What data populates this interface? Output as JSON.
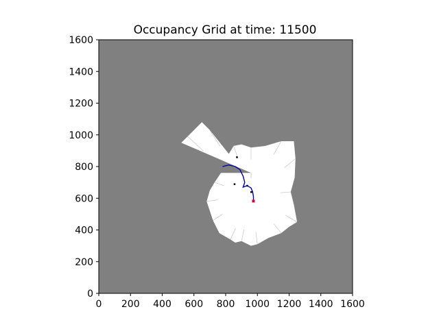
{
  "chart_data": {
    "type": "heatmap",
    "title": "Occupancy Grid at time: 11500",
    "xlabel": "",
    "ylabel": "",
    "xlim": [
      0,
      1600
    ],
    "ylim": [
      0,
      1600
    ],
    "x_ticks": [
      0,
      200,
      400,
      600,
      800,
      1000,
      1200,
      1400,
      1600
    ],
    "y_ticks": [
      0,
      200,
      400,
      600,
      800,
      1000,
      1200,
      1400,
      1600
    ],
    "colors": {
      "unknown": "#808080",
      "free": "#ffffff",
      "occupied": "#000000",
      "path": "#0000aa",
      "robot": "#e0003c"
    },
    "free_space_polygon": [
      [
        960,
        760
      ],
      [
        520,
        950
      ],
      [
        560,
        990
      ],
      [
        650,
        1080
      ],
      [
        700,
        1030
      ],
      [
        820,
        880
      ],
      [
        850,
        930
      ],
      [
        900,
        940
      ],
      [
        960,
        920
      ],
      [
        1050,
        930
      ],
      [
        1150,
        960
      ],
      [
        1230,
        960
      ],
      [
        1240,
        850
      ],
      [
        1235,
        730
      ],
      [
        1210,
        640
      ],
      [
        1230,
        560
      ],
      [
        1250,
        450
      ],
      [
        1200,
        420
      ],
      [
        1150,
        380
      ],
      [
        1070,
        350
      ],
      [
        1000,
        310
      ],
      [
        960,
        300
      ],
      [
        900,
        330
      ],
      [
        860,
        320
      ],
      [
        830,
        340
      ],
      [
        760,
        380
      ],
      [
        720,
        460
      ],
      [
        700,
        520
      ],
      [
        680,
        580
      ],
      [
        700,
        650
      ],
      [
        730,
        700
      ],
      [
        770,
        760
      ]
    ],
    "robot_path": [
      [
        780,
        800
      ],
      [
        820,
        810
      ],
      [
        860,
        800
      ],
      [
        890,
        780
      ],
      [
        910,
        740
      ],
      [
        920,
        700
      ],
      [
        910,
        670
      ],
      [
        935,
        680
      ],
      [
        960,
        665
      ],
      [
        970,
        640
      ],
      [
        975,
        610
      ],
      [
        975,
        585
      ]
    ],
    "robot_position": [
      975,
      582
    ],
    "obstacles": [
      [
        870,
        860
      ],
      [
        855,
        690
      ],
      [
        935,
        680
      ],
      [
        960,
        640
      ]
    ]
  }
}
